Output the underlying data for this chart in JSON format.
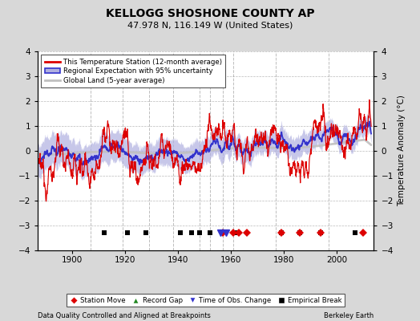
{
  "title": "KELLOGG SHOSHONE COUNTY AP",
  "subtitle": "47.978 N, 116.149 W (United States)",
  "ylabel": "Temperature Anomaly (°C)",
  "footer_left": "Data Quality Controlled and Aligned at Breakpoints",
  "footer_right": "Berkeley Earth",
  "ylim": [
    -4,
    4
  ],
  "xlim": [
    1887,
    2014
  ],
  "yticks": [
    -4,
    -3,
    -2,
    -1,
    0,
    1,
    2,
    3,
    4
  ],
  "xticks": [
    1900,
    1920,
    1940,
    1960,
    1980,
    2000
  ],
  "bg_color": "#d8d8d8",
  "plot_bg_color": "#ffffff",
  "red_line_color": "#dd0000",
  "blue_line_color": "#3333cc",
  "blue_fill_color": "#b0b0e0",
  "gray_line_color": "#c0c0c0",
  "vertical_line_color": "#888888",
  "vertical_lines": [
    1907,
    1919,
    1929,
    1938,
    1948,
    1952,
    1957,
    1961,
    1977,
    1997
  ],
  "empirical_breaks": [
    1912,
    1921,
    1928,
    1941,
    1945,
    1948,
    1952,
    1962,
    1979,
    1986,
    1994,
    2007
  ],
  "station_moves": [
    1957,
    1961,
    1963,
    1966,
    1979,
    1986,
    1994,
    2010
  ],
  "obs_changes": [
    1956,
    1958
  ],
  "record_gaps": [],
  "seed": 12345
}
